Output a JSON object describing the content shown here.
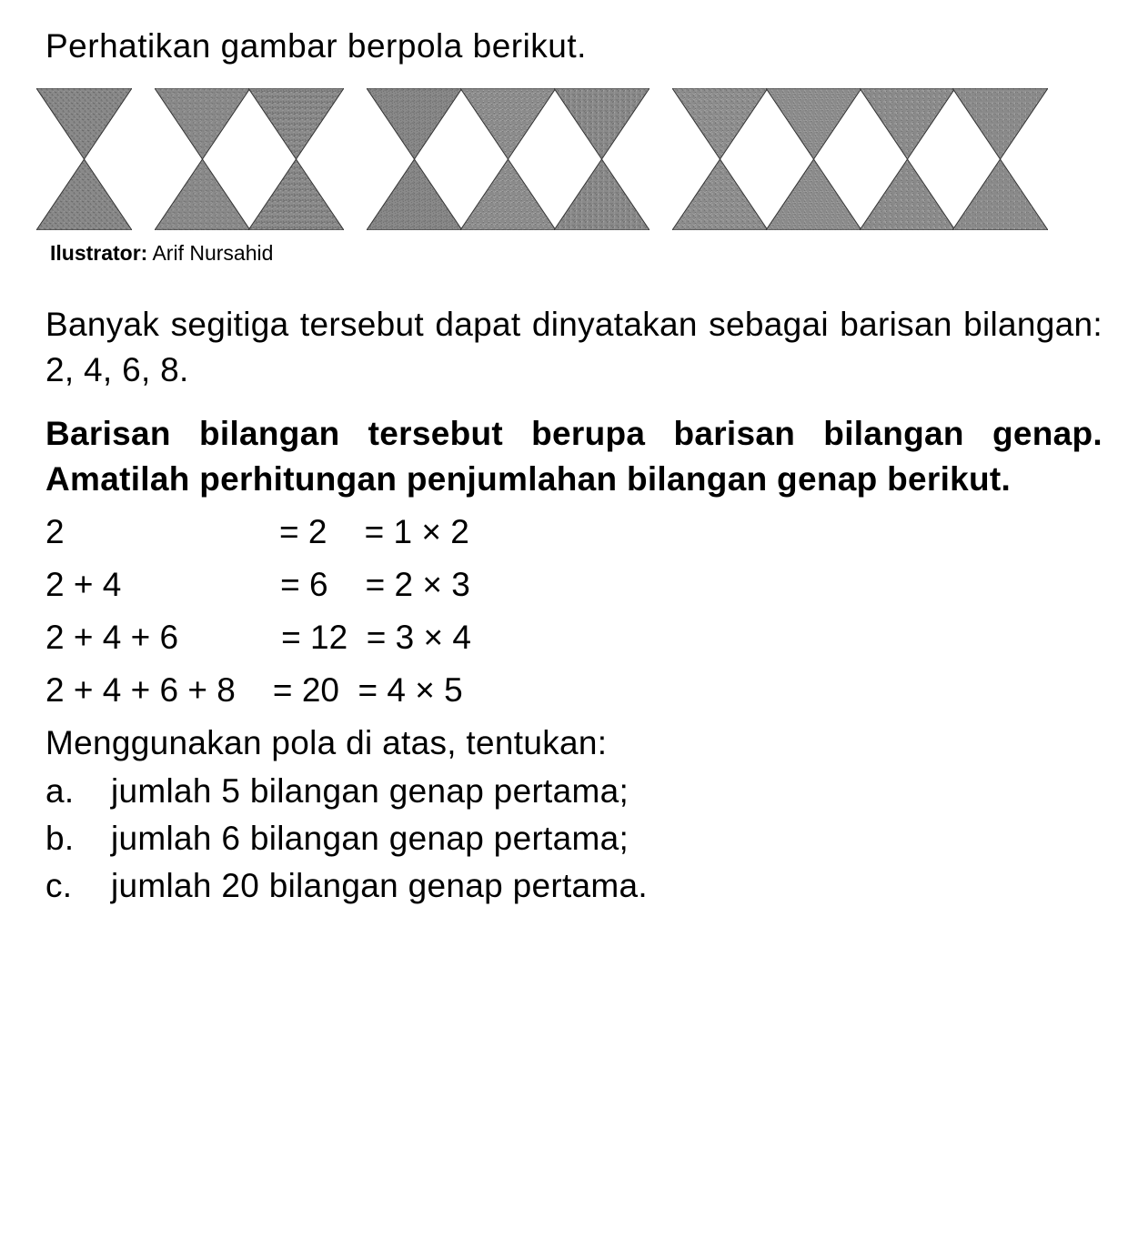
{
  "intro": "Perhatikan gambar berpola berikut.",
  "pattern": {
    "groups": [
      1,
      2,
      3,
      4
    ],
    "fill_color": "#8a8a8a",
    "stroke_color": "#333333",
    "unit_width": 105,
    "unit_height": 156
  },
  "credit": {
    "label": "Ilustrator:",
    "name": "Arif Nursahid"
  },
  "para1": "Banyak segitiga tersebut dapat dinyatakan sebagai barisan bilangan: 2, 4, 6, 8.",
  "para2": "Barisan bilangan tersebut berupa barisan bilangan genap. Amatilah perhitungan penjumlahan bilangan genap berikut.",
  "equations": [
    "2                       = 2    = 1 × 2",
    "2 + 4                 = 6    = 2 × 3",
    "2 + 4 + 6           = 12  = 3 × 4",
    "2 + 4 + 6 + 8    = 20  = 4 × 5"
  ],
  "question_lead": "Menggunakan pola di atas, tentukan:",
  "items": [
    {
      "letter": "a.",
      "text": "jumlah 5 bilangan genap pertama;"
    },
    {
      "letter": "b.",
      "text": "jumlah 6 bilangan genap pertama;"
    },
    {
      "letter": "c.",
      "text": "jumlah 20 bilangan genap pertama."
    }
  ],
  "colors": {
    "background": "#ffffff",
    "text": "#000000"
  },
  "font_sizes": {
    "body": 37,
    "credit": 23
  }
}
